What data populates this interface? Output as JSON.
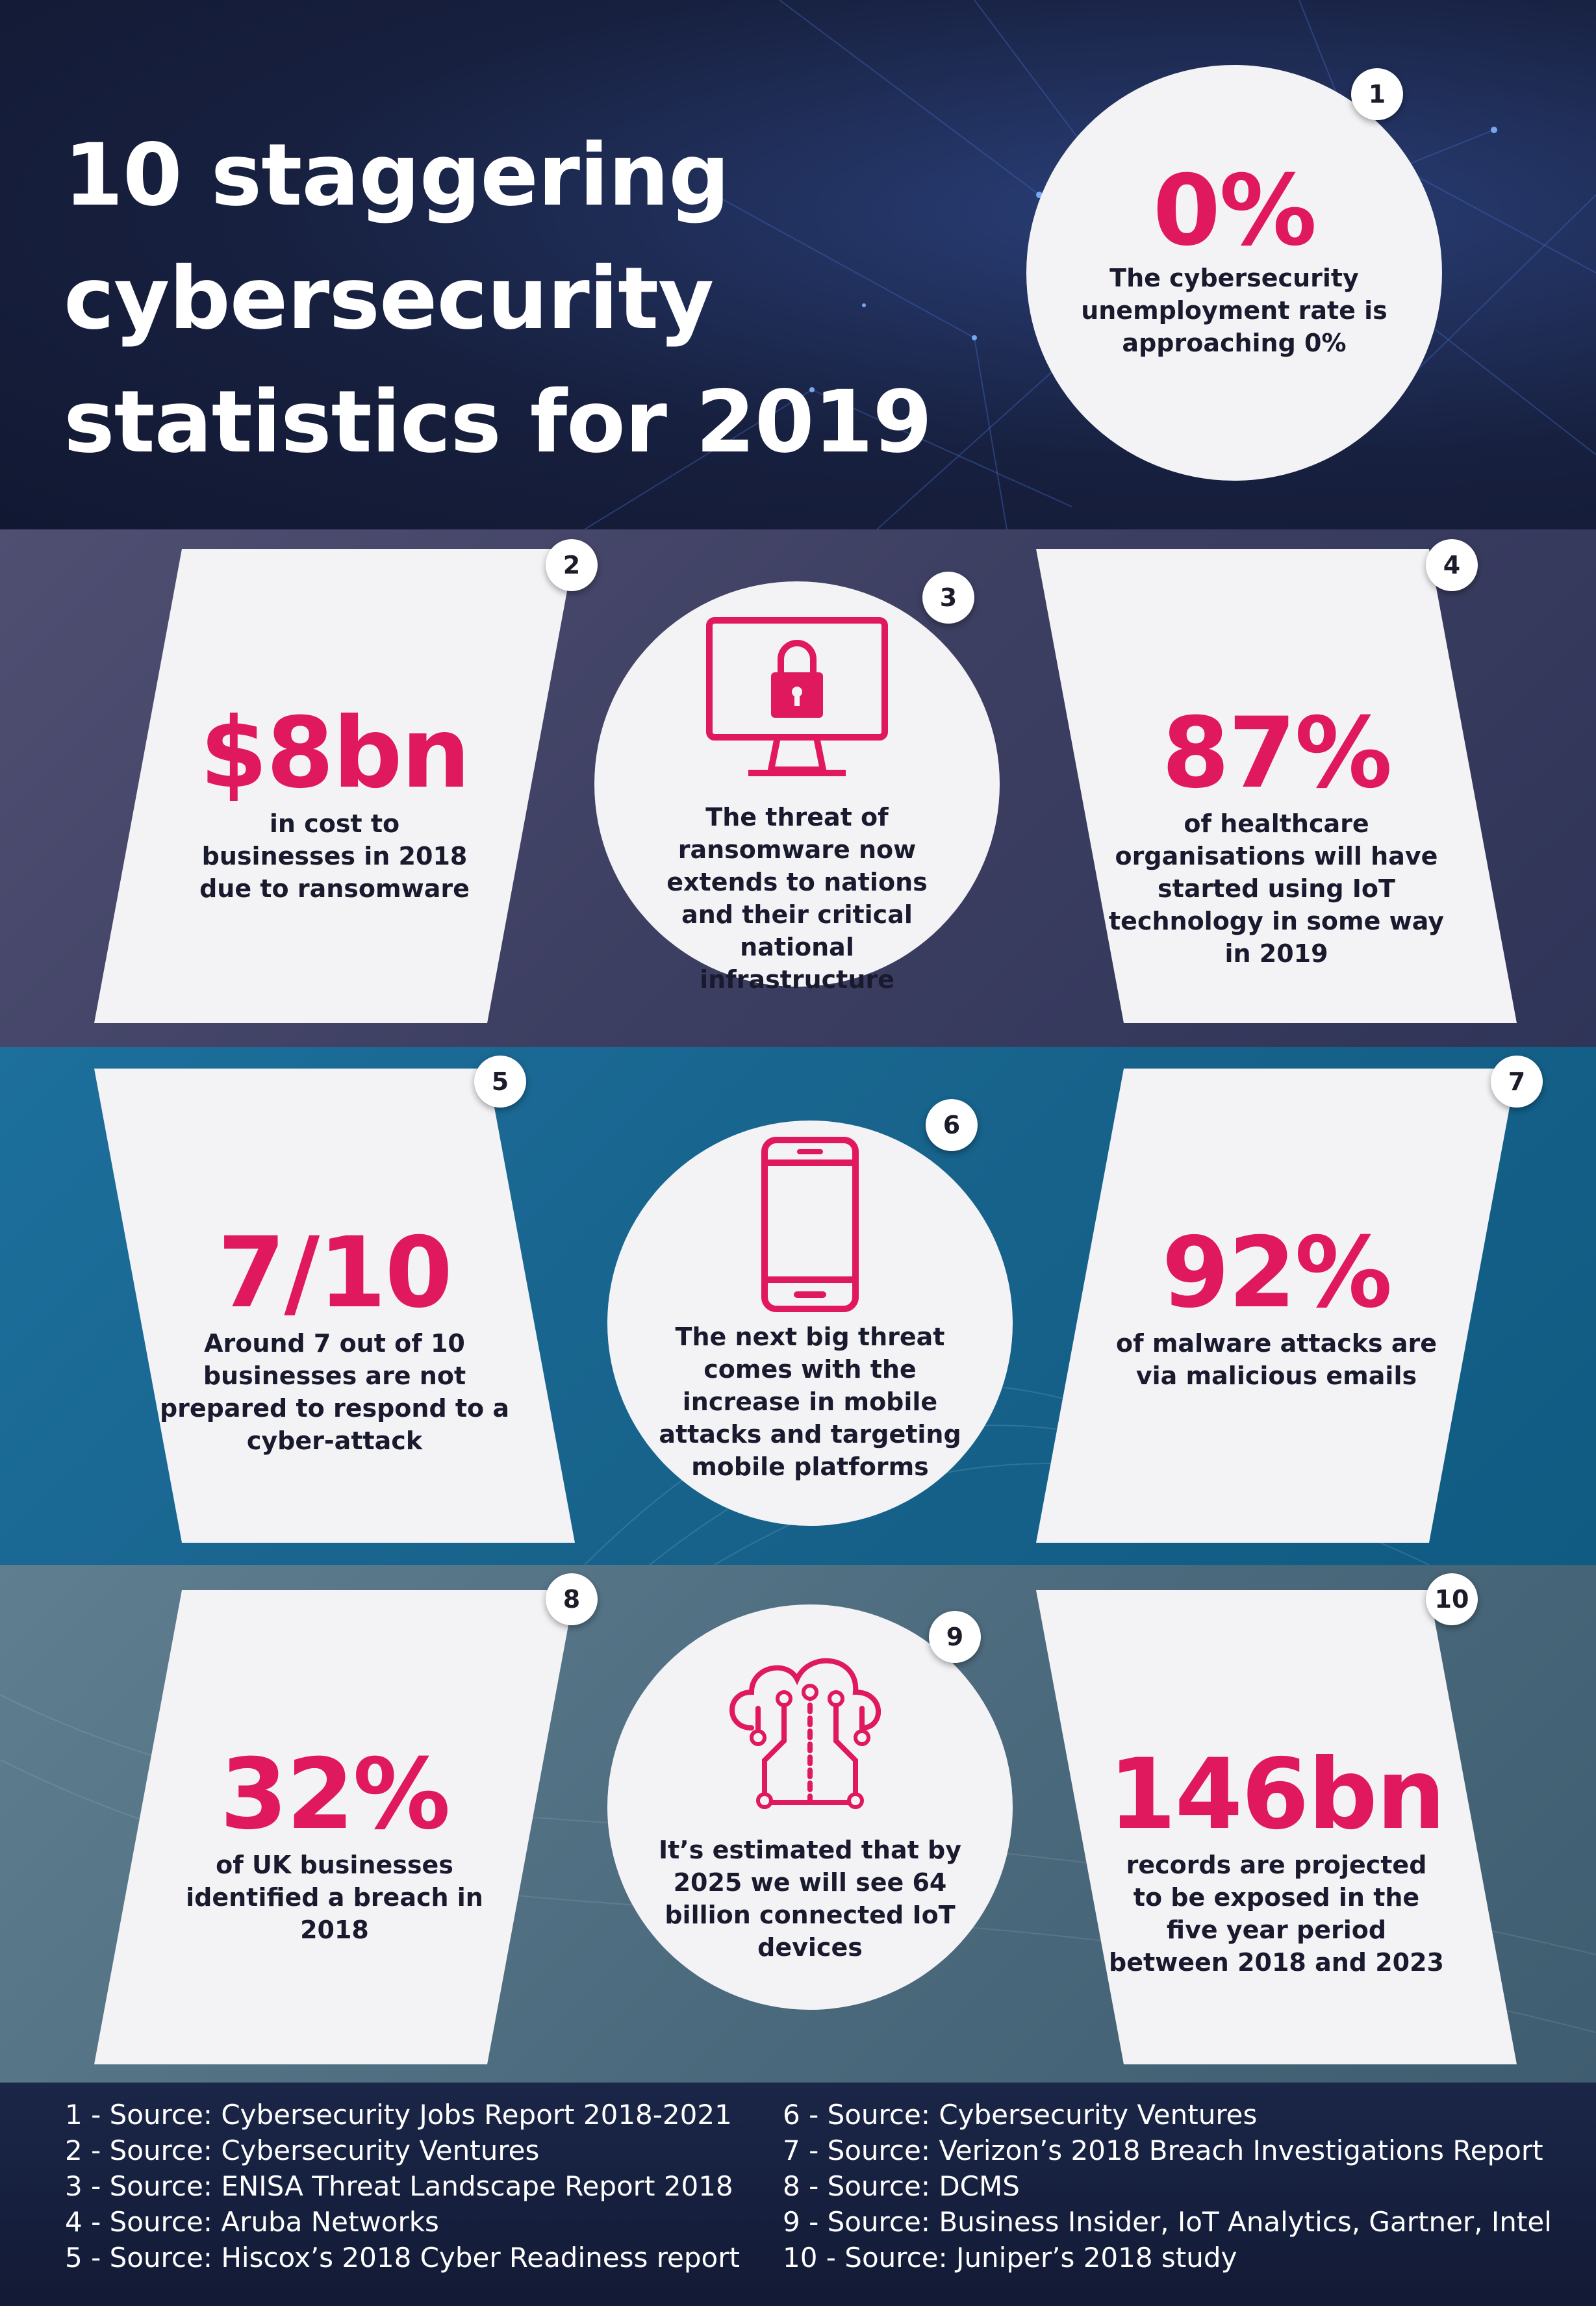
{
  "title": {
    "line1": "10 staggering",
    "line2": "cybersecurity",
    "line3": "statistics for 2019"
  },
  "colors": {
    "accent": "#e0195f",
    "card": "#f3f3f6",
    "header_bg": "#17203f",
    "row1_bg": "#45476a",
    "row2_bg": "#17638c",
    "row3_bg": "#4f6e80"
  },
  "stats": [
    {
      "num": "1",
      "value": "0%",
      "desc": "The cybersecurity unemployment rate is approaching 0%"
    },
    {
      "num": "2",
      "value": "$8bn",
      "desc": "in cost to businesses in 2018 due to ransomware"
    },
    {
      "num": "3",
      "icon": "monitor-lock-icon",
      "desc": "The threat of ransomware now extends to nations and their critical national infrastructure"
    },
    {
      "num": "4",
      "value": "87%",
      "desc": "of healthcare organisations will have started using IoT technology in some way in 2019"
    },
    {
      "num": "5",
      "value": "7/10",
      "desc": "Around 7 out of 10 businesses are not prepared to respond to a cyber-attack"
    },
    {
      "num": "6",
      "icon": "smartphone-icon",
      "desc": "The next big threat comes with the increase in mobile attacks and targeting mobile platforms"
    },
    {
      "num": "7",
      "value": "92%",
      "desc": "of malware attacks are via malicious emails"
    },
    {
      "num": "8",
      "value": "32%",
      "desc": "of UK businesses identified a breach in 2018"
    },
    {
      "num": "9",
      "icon": "cloud-network-icon",
      "desc": "It’s estimated that by 2025 we will see 64 billion connected IoT devices"
    },
    {
      "num": "10",
      "value": "146bn",
      "desc": "records are projected to be exposed in the five year period between 2018 and 2023"
    }
  ],
  "sources": [
    "1 - Source: Cybersecurity Jobs Report 2018-2021",
    "2 - Source: Cybersecurity Ventures",
    "3 - Source: ENISA Threat Landscape Report 2018",
    "4 - Source: Aruba Networks",
    "5 - Source: Hiscox’s 2018 Cyber Readiness report",
    "6 - Source: Cybersecurity Ventures",
    "7 - Source: Verizon’s 2018 Breach Investigations Report",
    "8 - Source: DCMS",
    "9 - Source: Business Insider, IoT Analytics, Gartner, Intel",
    "10 - Source: Juniper’s 2018 study"
  ]
}
